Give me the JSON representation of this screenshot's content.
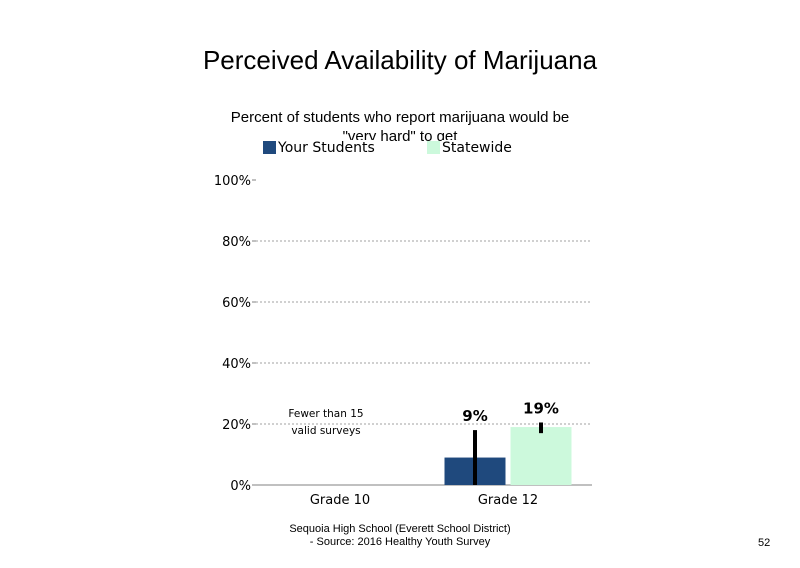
{
  "title": "Perceived Availability of Marijuana",
  "subtitle": "Percent of students who report marijuana would be \"very hard\" to get",
  "colors": {
    "your_students": "#1f497d",
    "statewide": "#ccf9dc",
    "axis": "#808080",
    "grid": "#a0a0a0"
  },
  "legend": {
    "your_students": "Your Students",
    "statewide": "Statewide"
  },
  "note": [
    "Fewer than 15",
    "valid surveys"
  ],
  "footer": [
    "Sequoia High School (Everett School District)",
    "- Source: 2016 Healthy Youth Survey"
  ],
  "page_number": "52",
  "chart_data": {
    "type": "bar",
    "title": "Perceived Availability of Marijuana",
    "subtitle": "Percent of students who report marijuana would be \"very hard\" to get",
    "categories": [
      "Grade 10",
      "Grade 12"
    ],
    "series": [
      {
        "name": "Your Students",
        "values": [
          null,
          9
        ],
        "labels": [
          "",
          "9%"
        ],
        "error_high": [
          null,
          18
        ]
      },
      {
        "name": "Statewide",
        "values": [
          null,
          19
        ],
        "labels": [
          "",
          "19%"
        ],
        "error_high": [
          null,
          20.5
        ],
        "error_low": [
          null,
          17
        ]
      }
    ],
    "y_ticks": [
      "0%",
      "20%",
      "40%",
      "60%",
      "80%",
      "100%"
    ],
    "ylim": [
      0,
      100
    ],
    "grid": true,
    "legend_position": "top"
  }
}
